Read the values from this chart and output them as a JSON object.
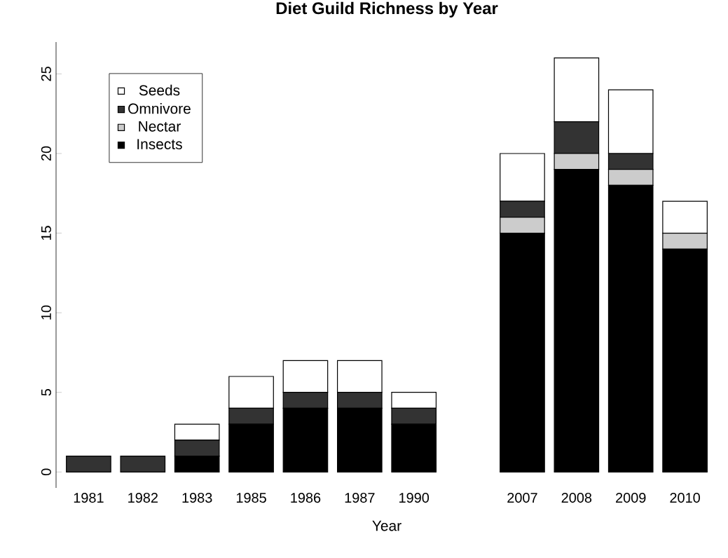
{
  "chart_data": {
    "type": "bar",
    "title": "Diet Guild Richness by Year",
    "xlabel": "Year",
    "categories": [
      "1981",
      "1982",
      "1983",
      "1985",
      "1986",
      "1987",
      "1990",
      null,
      "2007",
      "2008",
      "2009",
      "2010"
    ],
    "stacked": true,
    "legend": "top left",
    "ylim": [
      -1,
      27
    ],
    "yticks": [
      0,
      5,
      10,
      15,
      20,
      25
    ],
    "series": [
      {
        "name": "Insects",
        "color": "#000000",
        "values": [
          0,
          0,
          1,
          3,
          4,
          4,
          3,
          null,
          15,
          19,
          18,
          14
        ]
      },
      {
        "name": "Nectar",
        "color": "#cccccc",
        "values": [
          0,
          0,
          0,
          0,
          0,
          0,
          0,
          null,
          1,
          1,
          1,
          1
        ]
      },
      {
        "name": "Omnivore",
        "color": "#333333",
        "values": [
          1,
          1,
          1,
          1,
          1,
          1,
          1,
          null,
          1,
          2,
          1,
          0
        ]
      },
      {
        "name": "Seeds",
        "color": "#ffffff",
        "values": [
          0,
          0,
          1,
          2,
          2,
          2,
          1,
          null,
          3,
          4,
          4,
          2
        ]
      }
    ]
  }
}
